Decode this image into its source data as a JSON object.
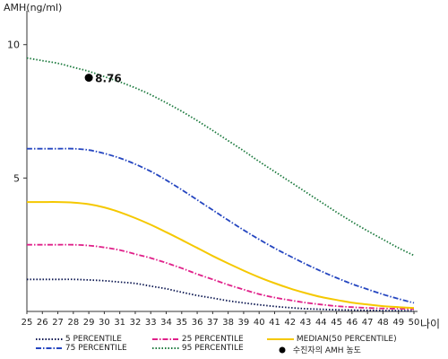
{
  "chart_data": {
    "type": "line",
    "ylabel": "AMH(ng/ml)",
    "xlabel": "나이",
    "xlim": [
      25,
      50
    ],
    "ylim": [
      0,
      11
    ],
    "xticks": [
      "25",
      "26",
      "27",
      "28",
      "29",
      "30",
      "31",
      "32",
      "33",
      "34",
      "35",
      "36",
      "37",
      "38",
      "39",
      "40",
      "41",
      "42",
      "43",
      "44",
      "45",
      "46",
      "47",
      "48",
      "49",
      "50"
    ],
    "yticks": [
      "5",
      "10"
    ],
    "x": [
      25,
      26,
      27,
      28,
      29,
      30,
      31,
      32,
      33,
      34,
      35,
      36,
      37,
      38,
      39,
      40,
      41,
      42,
      43,
      44,
      45,
      46,
      47,
      48,
      49,
      50
    ],
    "series": [
      {
        "name": "5 PERCENTILE",
        "key": "p5",
        "color": "#0b1650",
        "dash": "1.5,2",
        "values": [
          1.2,
          1.2,
          1.2,
          1.2,
          1.18,
          1.15,
          1.1,
          1.05,
          0.95,
          0.85,
          0.72,
          0.6,
          0.5,
          0.4,
          0.32,
          0.25,
          0.19,
          0.14,
          0.1,
          0.08,
          0.06,
          0.05,
          0.04,
          0.03,
          0.03,
          0.02
        ]
      },
      {
        "name": "25 PERCENTILE",
        "key": "p25",
        "color": "#e0218a",
        "dash": "6,2,1.5,2",
        "values": [
          2.5,
          2.5,
          2.5,
          2.5,
          2.47,
          2.4,
          2.3,
          2.15,
          2.0,
          1.82,
          1.62,
          1.4,
          1.2,
          1.0,
          0.82,
          0.65,
          0.52,
          0.42,
          0.33,
          0.26,
          0.2,
          0.16,
          0.13,
          0.11,
          0.1,
          0.09
        ]
      },
      {
        "name": "MEDIAN(50 PERCENTILE)",
        "key": "p50",
        "color": "#f5c800",
        "dash": "",
        "values": [
          4.1,
          4.1,
          4.1,
          4.08,
          4.02,
          3.9,
          3.72,
          3.5,
          3.25,
          2.97,
          2.68,
          2.38,
          2.08,
          1.8,
          1.53,
          1.28,
          1.06,
          0.86,
          0.69,
          0.54,
          0.43,
          0.33,
          0.26,
          0.2,
          0.16,
          0.13
        ]
      },
      {
        "name": "75 PERCENTILE",
        "key": "p75",
        "color": "#2546c0",
        "dash": "6,2,1.5,2",
        "values": [
          6.1,
          6.1,
          6.1,
          6.1,
          6.05,
          5.92,
          5.75,
          5.52,
          5.25,
          4.92,
          4.56,
          4.18,
          3.8,
          3.42,
          3.05,
          2.7,
          2.37,
          2.07,
          1.78,
          1.51,
          1.26,
          1.03,
          0.83,
          0.64,
          0.47,
          0.32
        ]
      },
      {
        "name": "95 PERCENTILE",
        "key": "p95",
        "color": "#1c7a3e",
        "dash": "1.5,2",
        "values": [
          9.5,
          9.4,
          9.3,
          9.15,
          9.0,
          8.8,
          8.6,
          8.38,
          8.12,
          7.82,
          7.5,
          7.15,
          6.78,
          6.4,
          6.02,
          5.62,
          5.24,
          4.86,
          4.48,
          4.1,
          3.72,
          3.36,
          3.02,
          2.7,
          2.38,
          2.1
        ]
      }
    ],
    "patient": {
      "name": "수진자의 AMH 농도",
      "x": 29,
      "y": 8.76,
      "label": "8.76",
      "color": "#000000"
    },
    "grid": false,
    "legend_position": "bottom"
  }
}
